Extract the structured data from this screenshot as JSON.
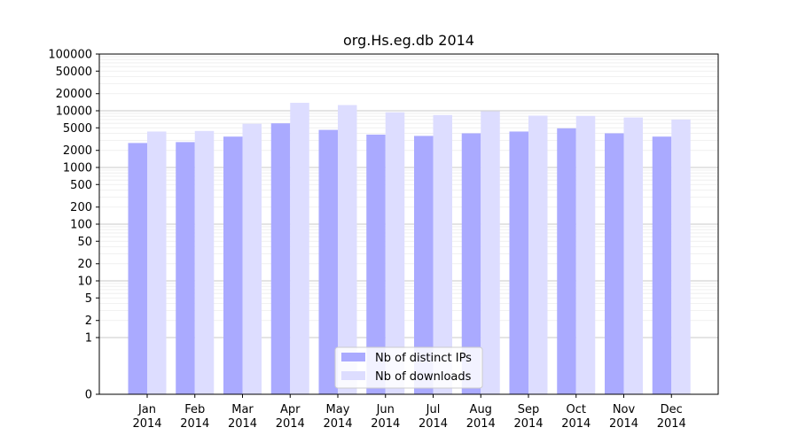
{
  "chart_data": {
    "type": "bar",
    "title": "org.Hs.eg.db 2014",
    "xlabel": "",
    "ylabel": "",
    "yscale": "symlog",
    "ylim": [
      0,
      100000
    ],
    "grid": true,
    "legend_position": "bottom-center",
    "categories": [
      {
        "month": "Jan",
        "year": "2014"
      },
      {
        "month": "Feb",
        "year": "2014"
      },
      {
        "month": "Mar",
        "year": "2014"
      },
      {
        "month": "Apr",
        "year": "2014"
      },
      {
        "month": "May",
        "year": "2014"
      },
      {
        "month": "Jun",
        "year": "2014"
      },
      {
        "month": "Jul",
        "year": "2014"
      },
      {
        "month": "Aug",
        "year": "2014"
      },
      {
        "month": "Sep",
        "year": "2014"
      },
      {
        "month": "Oct",
        "year": "2014"
      },
      {
        "month": "Nov",
        "year": "2014"
      },
      {
        "month": "Dec",
        "year": "2014"
      }
    ],
    "y_ticks": [
      {
        "value": 0,
        "label": "0"
      },
      {
        "value": 1,
        "label": "1"
      },
      {
        "value": 2,
        "label": "2"
      },
      {
        "value": 5,
        "label": "5"
      },
      {
        "value": 10,
        "label": "10"
      },
      {
        "value": 20,
        "label": "20"
      },
      {
        "value": 50,
        "label": "50"
      },
      {
        "value": 100,
        "label": "100"
      },
      {
        "value": 200,
        "label": "200"
      },
      {
        "value": 500,
        "label": "500"
      },
      {
        "value": 1000,
        "label": "1000"
      },
      {
        "value": 2000,
        "label": "2000"
      },
      {
        "value": 5000,
        "label": "5000"
      },
      {
        "value": 10000,
        "label": "10000"
      },
      {
        "value": 20000,
        "label": "20000"
      },
      {
        "value": 50000,
        "label": "50000"
      },
      {
        "value": 100000,
        "label": "100000"
      }
    ],
    "series": [
      {
        "name": "Nb of distinct IPs",
        "color": "#aaaaff",
        "values": [
          2700,
          2800,
          3500,
          6000,
          4600,
          3800,
          3600,
          4000,
          4300,
          4900,
          4000,
          3500
        ]
      },
      {
        "name": "Nb of downloads",
        "color": "#ddddff",
        "values": [
          4300,
          4400,
          5900,
          13800,
          12600,
          9400,
          8400,
          9800,
          8200,
          8100,
          7600,
          7000
        ]
      }
    ]
  }
}
